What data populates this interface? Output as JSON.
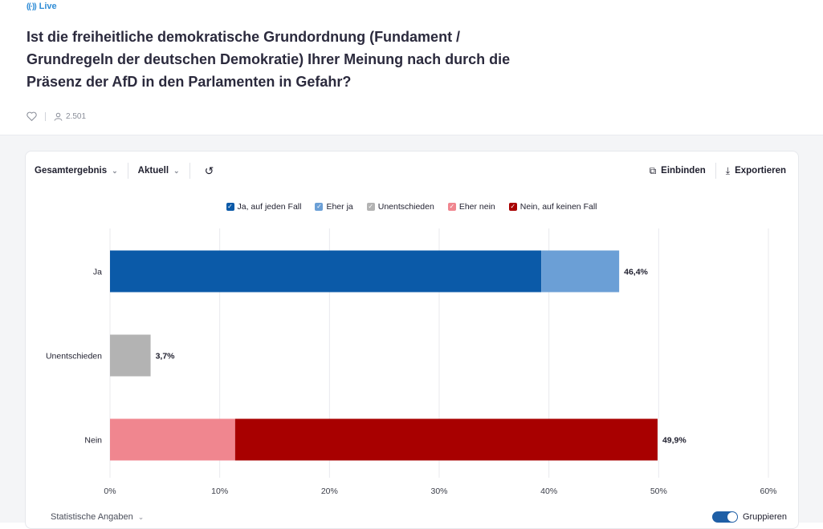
{
  "header": {
    "live_label": "Live",
    "question": "Ist die freiheitliche demokratische Grundordnung (Fundament / Grundregeln der deutschen Demokratie) Ihrer Meinung nach durch die Präsenz der AfD in den Parlamenten in Gefahr?",
    "votes": "2.501",
    "icons": {
      "live": "broadcast-icon",
      "like": "heart-icon",
      "votes": "person-icon"
    }
  },
  "toolbar": {
    "result_select": "Gesamtergebnis",
    "time_select": "Aktuell",
    "embed_label": "Einbinden",
    "export_label": "Exportieren"
  },
  "footer": {
    "stats_label": "Statistische Angaben",
    "group_label": "Gruppieren",
    "group_on": true
  },
  "chart_data": {
    "type": "bar",
    "orientation": "horizontal",
    "stacked": true,
    "categories": [
      "Ja",
      "Unentschieden",
      "Nein"
    ],
    "series": [
      {
        "name": "Ja, auf jeden Fall",
        "color": "#0b5aa8",
        "values": [
          39.3,
          0,
          0
        ]
      },
      {
        "name": "Eher ja",
        "color": "#6b9fd6",
        "values": [
          7.1,
          0,
          0
        ]
      },
      {
        "name": "Unentschieden",
        "color": "#b3b3b3",
        "values": [
          0,
          3.7,
          0
        ]
      },
      {
        "name": "Eher nein",
        "color": "#f0868f",
        "values": [
          0,
          0,
          11.4
        ]
      },
      {
        "name": "Nein, auf keinen Fall",
        "color": "#a80000",
        "values": [
          0,
          0,
          38.5
        ]
      }
    ],
    "total_labels": [
      "46,4%",
      "3,7%",
      "49,9%"
    ],
    "xlim": [
      0,
      60
    ],
    "xticks": [
      0,
      10,
      20,
      30,
      40,
      50,
      60
    ],
    "tick_labels": [
      "0%",
      "10%",
      "20%",
      "30%",
      "40%",
      "50%",
      "60%"
    ],
    "legend_position": "top-center",
    "grid": true
  }
}
